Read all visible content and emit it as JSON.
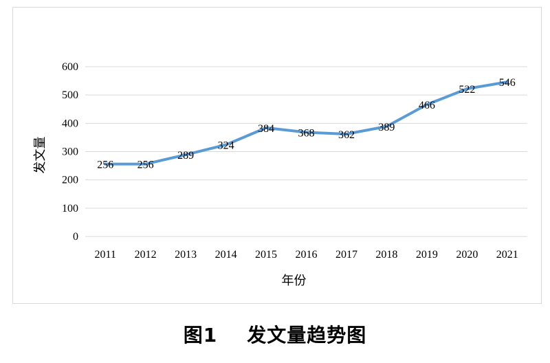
{
  "caption": {
    "figure_no": "图1",
    "title": "发文量趋势图"
  },
  "chart_data": {
    "type": "line",
    "x": [
      "2011",
      "2012",
      "2013",
      "2014",
      "2015",
      "2016",
      "2017",
      "2018",
      "2019",
      "2020",
      "2021"
    ],
    "series": [
      {
        "values": [
          256,
          256,
          289,
          324,
          384,
          368,
          362,
          389,
          466,
          522,
          546
        ],
        "data_labels": [
          "256",
          "256",
          "289",
          "324",
          "384",
          "368",
          "362",
          "389",
          "466",
          "522",
          "546"
        ],
        "color": "#5b9bd5"
      }
    ],
    "xlabel": "年份",
    "ylabel": "发文量",
    "ylim": [
      0,
      600
    ],
    "yticks": [
      "0",
      "100",
      "200",
      "300",
      "400",
      "500",
      "600"
    ],
    "grid": "horizontal",
    "legend": "none",
    "gridline_color": "#d9d9d9"
  }
}
